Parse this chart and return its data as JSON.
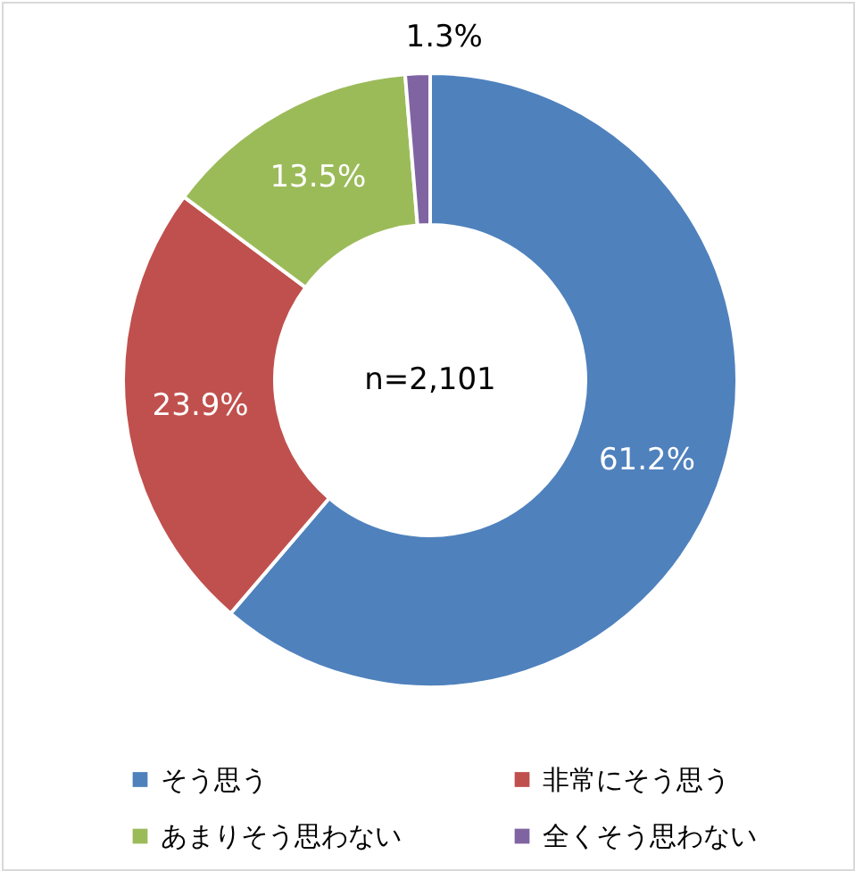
{
  "chart_data": {
    "type": "donut",
    "categories": [
      "そう思う",
      "非常にそう思う",
      "あまりそう思わない",
      "全くそう思わない"
    ],
    "values": [
      61.2,
      23.9,
      13.5,
      1.3
    ],
    "colors": [
      "#4f81bd",
      "#c0504d",
      "#9bbb59",
      "#8064a2"
    ],
    "value_labels": [
      "61.2%",
      "23.9%",
      "13.5%",
      "1.3%"
    ],
    "annotations": [
      "n=2,101"
    ],
    "legend": "bottom"
  }
}
